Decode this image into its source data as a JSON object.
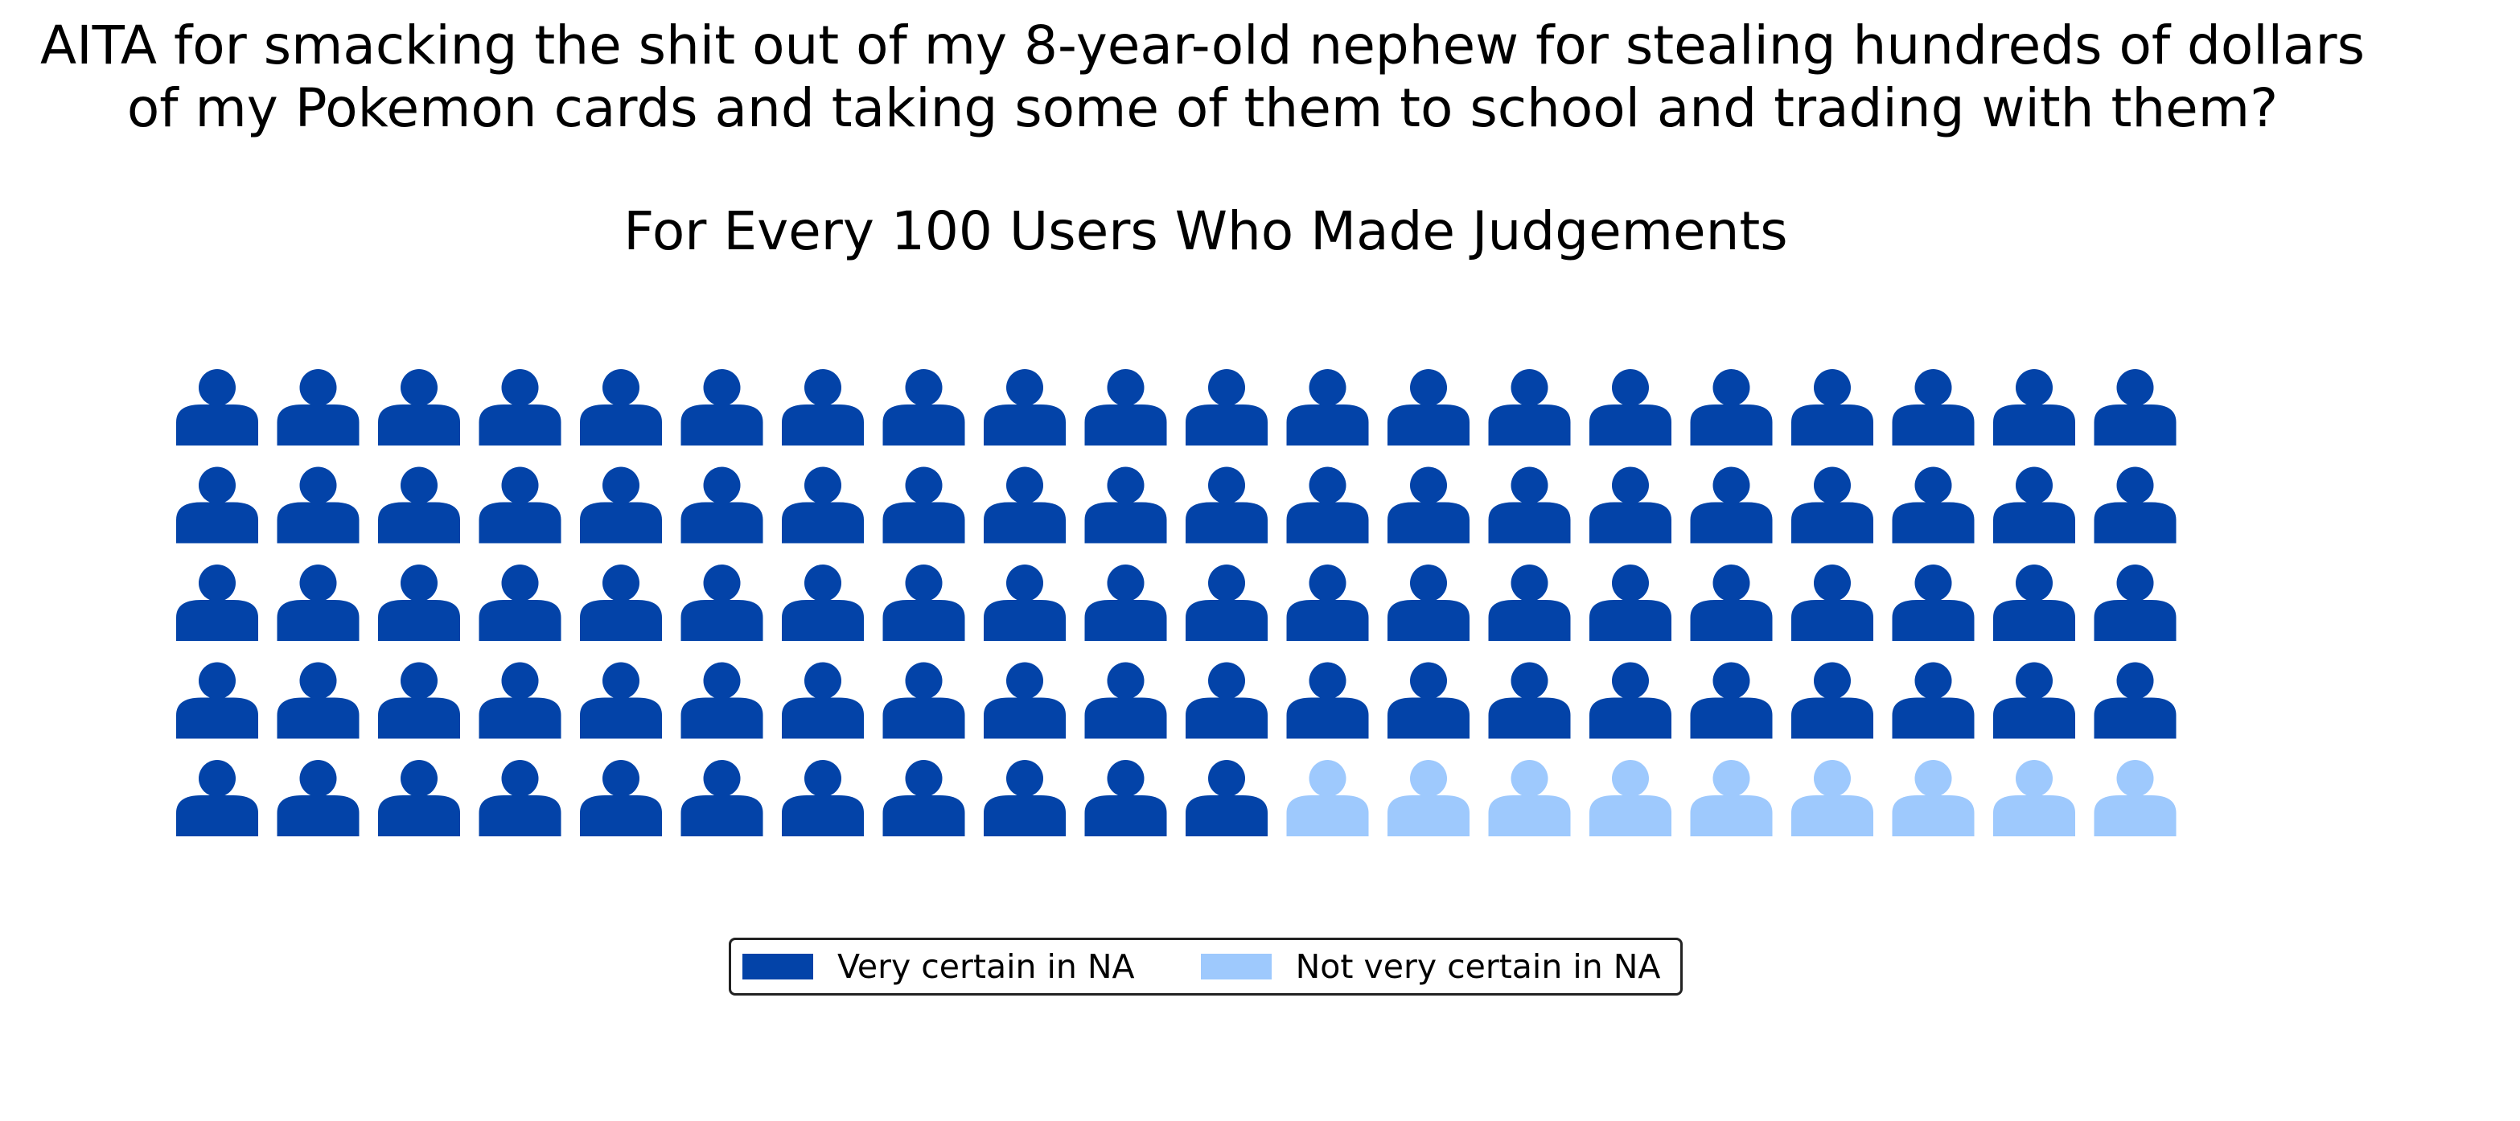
{
  "chart_data": {
    "type": "waffle",
    "title_lines": [
      "AITA for smacking the shit out of my 8-year-old nephew for stealing hundreds of dollars",
      "of my Pokemon cards and taking some of them to school and trading with them?"
    ],
    "subtitle": "For Every 100 Users Who Made Judgements",
    "rows": 5,
    "columns": 20,
    "icon": "person-icon",
    "series": [
      {
        "name": "Very certain in NA",
        "value": 91,
        "color": "#0343a8"
      },
      {
        "name": "Not very certain in NA",
        "value": 9,
        "color": "#9ec9fd"
      }
    ],
    "legend": {
      "position": "bottom-center",
      "frame": true
    }
  }
}
